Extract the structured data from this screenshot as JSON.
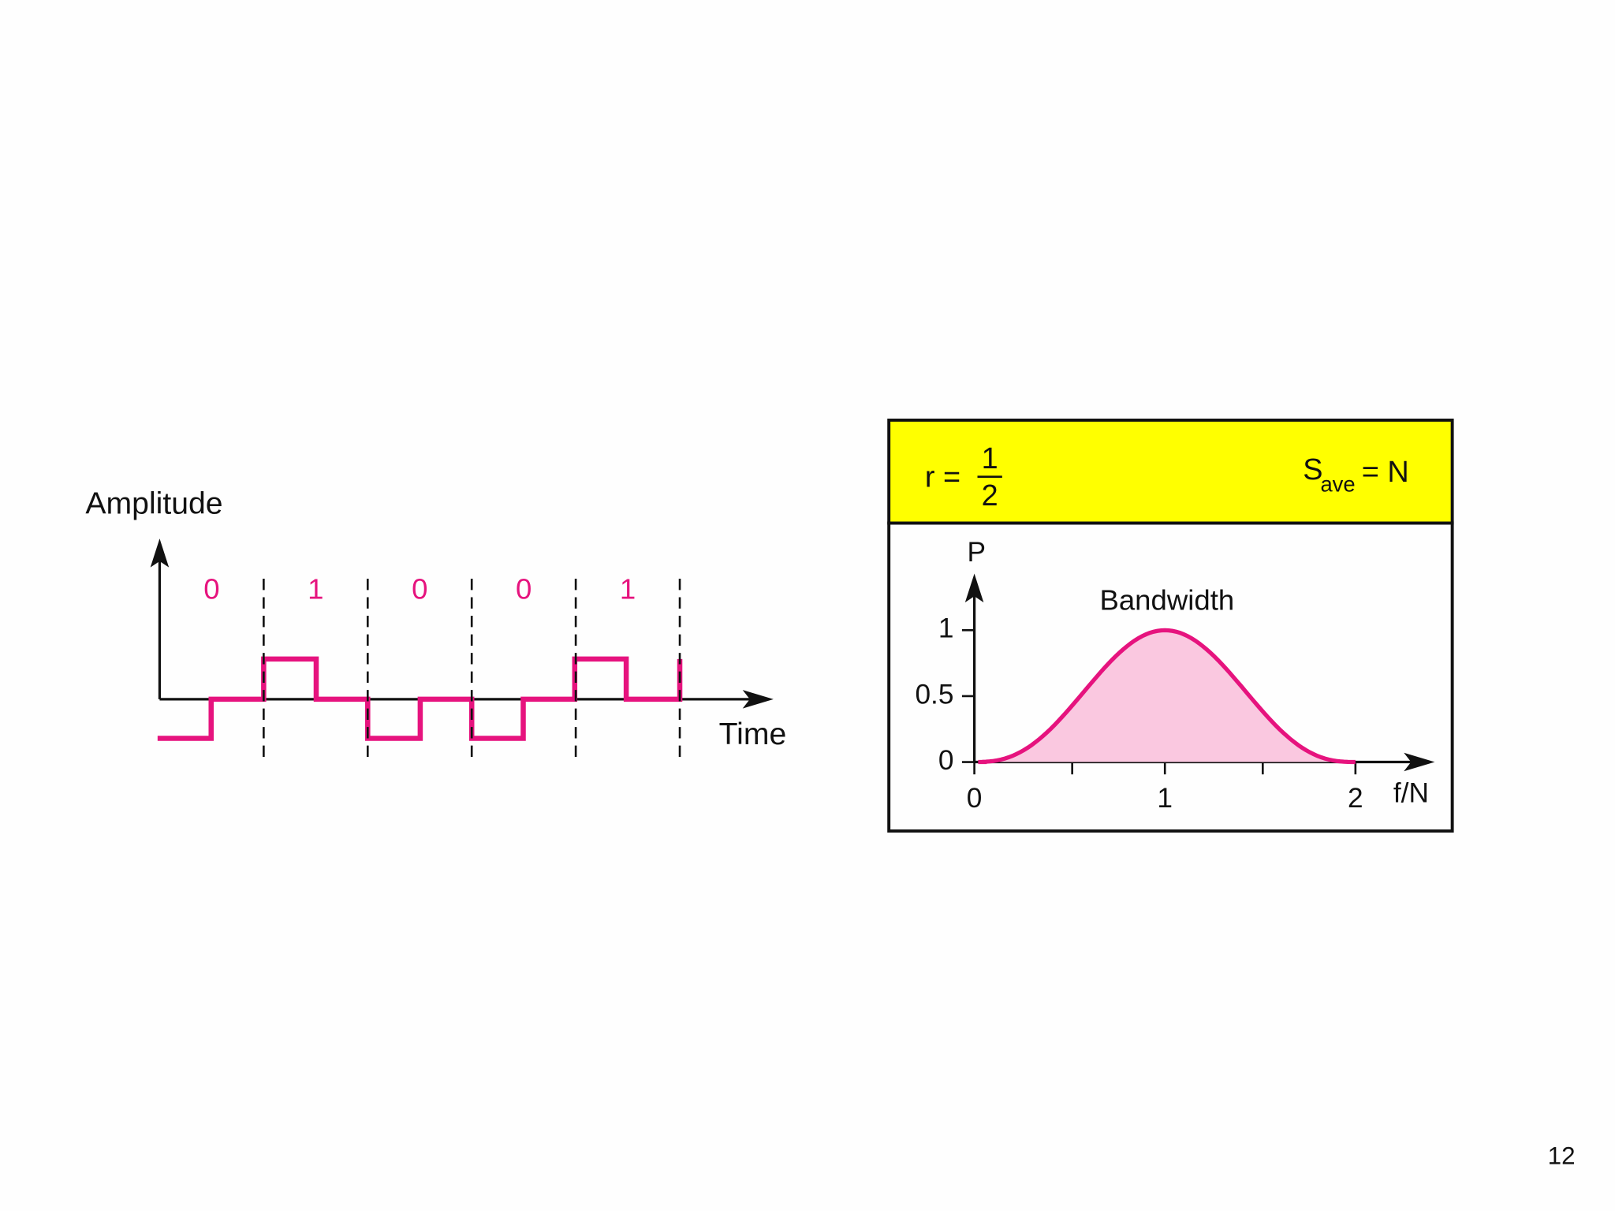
{
  "waveform": {
    "y_label": "Amplitude",
    "x_label": "Time",
    "bits": [
      "0",
      "1",
      "0",
      "0",
      "1"
    ]
  },
  "spectrum": {
    "header": {
      "ratio_lhs": "r =",
      "ratio_numerator": "1",
      "ratio_denominator": "2",
      "signal_symbol": "S",
      "signal_subscript": "ave",
      "signal_rhs": "= N"
    },
    "y_label": "P",
    "x_label": "f/N",
    "curve_label": "Bandwidth",
    "yticks": [
      0,
      0.5,
      1
    ],
    "xticks": [
      0,
      1,
      2
    ]
  },
  "page_number": "12"
}
